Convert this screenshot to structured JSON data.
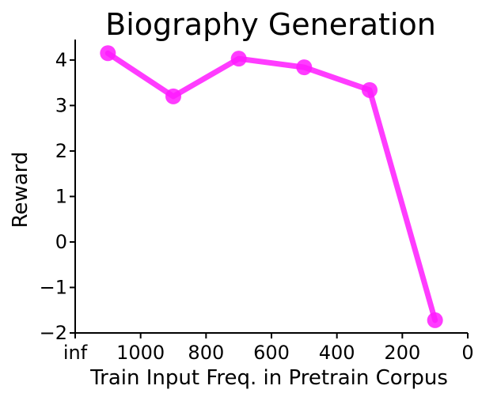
{
  "chart_data": {
    "type": "line",
    "title": "Biography Generation",
    "xlabel": "Train Input Freq. in Pretrain Corpus",
    "ylabel": "Reward",
    "x_tick_labels": [
      "inf",
      "1000",
      "800",
      "600",
      "400",
      "200",
      "0"
    ],
    "y_tick_labels": [
      "−2",
      "−1",
      "0",
      "1",
      "2",
      "3",
      "4"
    ],
    "x_ticks": [
      1200,
      1000,
      800,
      600,
      400,
      200,
      0
    ],
    "y_ticks": [
      -2,
      -1,
      0,
      1,
      2,
      3,
      4
    ],
    "xlim": [
      1200,
      0
    ],
    "ylim": [
      -2,
      4.45
    ],
    "series": [
      {
        "color": "#ff1aff",
        "x": [
          1100,
          900,
          700,
          500,
          300,
          100
        ],
        "y": [
          4.15,
          3.2,
          4.03,
          3.84,
          3.34,
          -1.72
        ]
      }
    ],
    "grid": false,
    "legend": "none"
  }
}
